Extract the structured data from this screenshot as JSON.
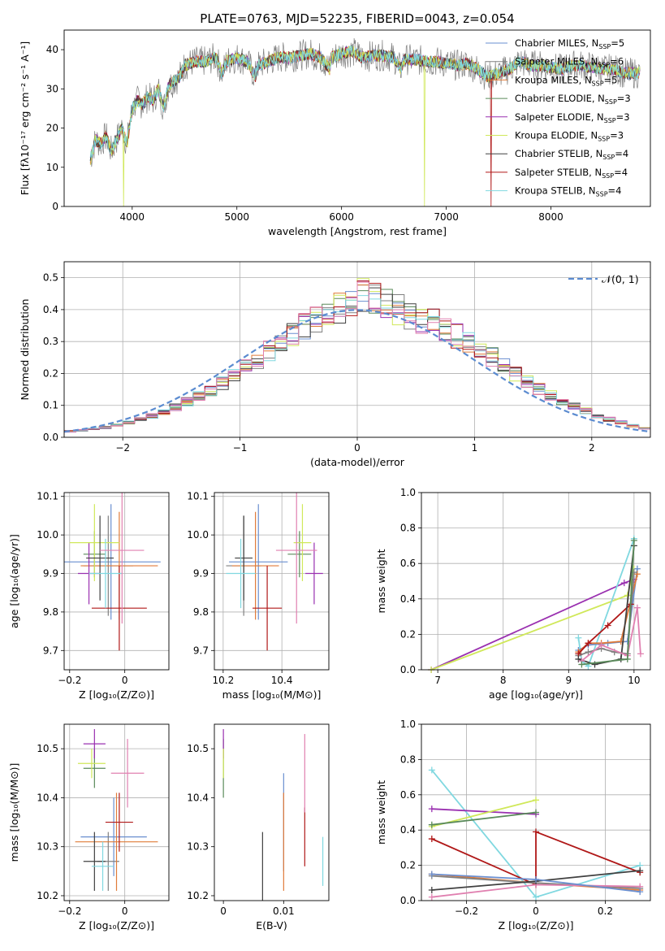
{
  "colors": {
    "chabrier_miles": "#6a8fd0",
    "salpeter_miles": "#808080",
    "kroupa_miles": "#e07b39",
    "chabrier_elodie": "#5a8a5a",
    "salpeter_elodie": "#9a30b0",
    "kroupa_elodie": "#d0e85a",
    "chabrier_stelib": "#404040",
    "salpeter_stelib": "#b01818",
    "kroupa_stelib": "#80d8e0",
    "pink": "#e080b0",
    "normal": "#5b8bd0",
    "grid": "#b0b0b0"
  },
  "chart_data": [
    {
      "id": "spectrum",
      "type": "line",
      "title": "PLATE=0763, MJD=52235, FIBERID=0043, z=0.054",
      "xlabel": "wavelength [Angstrom, rest frame]",
      "ylabel": "Flux [fλ10⁻¹⁷ erg cm⁻² s⁻¹ A⁻¹]",
      "xlim": [
        3350,
        8950
      ],
      "ylim": [
        0,
        45
      ],
      "xticks": [
        4000,
        5000,
        6000,
        7000,
        8000
      ],
      "yticks": [
        0,
        10,
        20,
        30,
        40
      ],
      "x": [
        3600,
        3650,
        3700,
        3750,
        3800,
        3850,
        3900,
        3950,
        4000,
        4050,
        4100,
        4150,
        4200,
        4250,
        4300,
        4350,
        4400,
        4450,
        4500,
        4600,
        4700,
        4800,
        4860,
        4900,
        5000,
        5100,
        5175,
        5200,
        5300,
        5400,
        5500,
        5600,
        5700,
        5800,
        5890,
        5900,
        6000,
        6100,
        6200,
        6300,
        6400,
        6500,
        6563,
        6600,
        6700,
        6800,
        6900,
        7000,
        7100,
        7200,
        7300,
        7400,
        7500,
        7600,
        7700,
        7800,
        7900,
        8000,
        8100,
        8200,
        8300,
        8400,
        8500,
        8600,
        8700,
        8850
      ],
      "y": [
        12,
        17,
        16,
        18,
        14,
        17,
        20,
        16,
        25,
        27,
        26,
        28,
        27,
        30,
        25,
        31,
        32,
        33,
        36,
        37,
        37,
        38,
        34,
        37,
        38,
        37,
        33,
        36,
        37,
        38,
        38,
        38.5,
        39,
        38,
        35,
        38,
        39,
        39.5,
        38,
        38.5,
        38.5,
        38,
        35,
        37.5,
        37.5,
        37,
        37,
        36.5,
        36,
        36.5,
        35,
        33,
        34,
        35,
        37,
        36,
        36,
        35.5,
        35,
        36,
        36,
        35.5,
        35,
        35,
        34,
        34
      ],
      "legend": [
        "Chabrier MILES, N_SSP=5",
        "Salpeter MILES, N_SSP=6",
        "Kroupa MILES, N_SSP=5",
        "Chabrier ELODIE, N_SSP=3",
        "Salpeter ELODIE, N_SSP=3",
        "Kroupa ELODIE, N_SSP=3",
        "Chabrier STELIB, N_SSP=4",
        "Salpeter STELIB, N_SSP=4",
        "Kroupa STELIB, N_SSP=4"
      ],
      "legend_text": [
        "Chabrier MILES, N",
        "Salpeter MILES, N",
        "Kroupa MILES, N",
        "Chabrier ELODIE, N",
        "Salpeter ELODIE, N",
        "Kroupa ELODIE, N",
        "Chabrier STELIB, N",
        "Salpeter STELIB, N",
        "Kroupa STELIB, N"
      ],
      "legend_sub": "SSP",
      "legend_n": [
        "=5",
        "=6",
        "=5",
        "=3",
        "=3",
        "=3",
        "=4",
        "=4",
        "=4"
      ],
      "legend_placement": "top-right",
      "dropouts": [
        3920,
        6790,
        7430
      ],
      "grid": false
    },
    {
      "id": "residuals",
      "type": "histogram",
      "xlabel": "(data-model)/error",
      "ylabel": "Normed distribution",
      "xlim": [
        -2.5,
        2.5
      ],
      "ylim": [
        0,
        0.55
      ],
      "xticks": [
        -2,
        -1,
        0,
        1,
        2
      ],
      "yticks": [
        0.0,
        0.1,
        0.2,
        0.3,
        0.4,
        0.5
      ],
      "bin_width": 0.1,
      "bin_start": -2.5,
      "values": [
        0.018,
        0.021,
        0.025,
        0.03,
        0.037,
        0.045,
        0.055,
        0.066,
        0.078,
        0.092,
        0.108,
        0.125,
        0.144,
        0.165,
        0.188,
        0.212,
        0.238,
        0.265,
        0.29,
        0.315,
        0.34,
        0.36,
        0.38,
        0.395,
        0.41,
        0.435,
        0.425,
        0.405,
        0.39,
        0.375,
        0.36,
        0.35,
        0.33,
        0.31,
        0.29,
        0.27,
        0.245,
        0.22,
        0.195,
        0.17,
        0.148,
        0.128,
        0.11,
        0.094,
        0.08,
        0.066,
        0.055,
        0.045,
        0.036,
        0.028
      ],
      "legend": "𝒩(0, 1)",
      "grid": true
    },
    {
      "id": "age-vs-Z",
      "type": "errorbar",
      "xlabel": "Z [log₁₀(Z/Z⊙)]",
      "ylabel": "age  [log₁₀(age/yr)]",
      "xlim": [
        -0.22,
        0.16
      ],
      "ylim": [
        9.65,
        10.11
      ],
      "xticks": [
        -0.2,
        0.0
      ],
      "yticks": [
        9.7,
        9.8,
        9.9,
        10.0,
        10.1
      ],
      "points": [
        {
          "x": -0.05,
          "y": 9.93,
          "xerr": 0.18,
          "yerr": 0.15,
          "c": "chabrier_miles"
        },
        {
          "x": -0.06,
          "y": 9.92,
          "xerr": 0.09,
          "yerr": 0.13,
          "c": "salpeter_miles"
        },
        {
          "x": -0.02,
          "y": 9.92,
          "xerr": 0.14,
          "yerr": 0.14,
          "c": "kroupa_miles"
        },
        {
          "x": -0.11,
          "y": 9.95,
          "xerr": 0.04,
          "yerr": 0.06,
          "c": "chabrier_elodie"
        },
        {
          "x": -0.13,
          "y": 9.9,
          "xerr": 0.04,
          "yerr": 0.08,
          "c": "salpeter_elodie"
        },
        {
          "x": -0.11,
          "y": 9.98,
          "xerr": 0.09,
          "yerr": 0.1,
          "c": "kroupa_elodie"
        },
        {
          "x": -0.09,
          "y": 9.94,
          "xerr": 0.05,
          "yerr": 0.11,
          "c": "chabrier_stelib"
        },
        {
          "x": -0.02,
          "y": 9.81,
          "xerr": 0.1,
          "yerr": 0.11,
          "c": "salpeter_stelib"
        },
        {
          "x": -0.07,
          "y": 9.9,
          "xerr": 0.06,
          "yerr": 0.09,
          "c": "kroupa_stelib"
        },
        {
          "x": -0.01,
          "y": 9.96,
          "xerr": 0.08,
          "yerr": 0.19,
          "c": "pink"
        }
      ],
      "grid": true
    },
    {
      "id": "age-vs-mass",
      "type": "errorbar",
      "xlabel": "mass [log₁₀(M/M⊙)]",
      "ylabel": "",
      "xlim": [
        10.17,
        10.56
      ],
      "ylim": [
        9.65,
        10.11
      ],
      "xticks": [
        10.2,
        10.4
      ],
      "yticks": [
        9.7,
        9.8,
        9.9,
        10.0,
        10.1
      ],
      "points": [
        {
          "x": 10.32,
          "y": 9.93,
          "xerr": 0.1,
          "yerr": 0.15,
          "c": "chabrier_miles"
        },
        {
          "x": 10.27,
          "y": 9.92,
          "xerr": 0.06,
          "yerr": 0.13,
          "c": "salpeter_miles"
        },
        {
          "x": 10.31,
          "y": 9.92,
          "xerr": 0.08,
          "yerr": 0.14,
          "c": "kroupa_miles"
        },
        {
          "x": 10.46,
          "y": 9.95,
          "xerr": 0.04,
          "yerr": 0.06,
          "c": "chabrier_elodie"
        },
        {
          "x": 10.51,
          "y": 9.9,
          "xerr": 0.03,
          "yerr": 0.08,
          "c": "salpeter_elodie"
        },
        {
          "x": 10.47,
          "y": 9.98,
          "xerr": 0.03,
          "yerr": 0.1,
          "c": "kroupa_elodie"
        },
        {
          "x": 10.27,
          "y": 9.94,
          "xerr": 0.03,
          "yerr": 0.11,
          "c": "chabrier_stelib"
        },
        {
          "x": 10.35,
          "y": 9.81,
          "xerr": 0.05,
          "yerr": 0.11,
          "c": "salpeter_stelib"
        },
        {
          "x": 10.26,
          "y": 9.9,
          "xerr": 0.05,
          "yerr": 0.09,
          "c": "kroupa_stelib"
        },
        {
          "x": 10.45,
          "y": 9.96,
          "xerr": 0.07,
          "yerr": 0.19,
          "c": "pink"
        }
      ],
      "grid": true
    },
    {
      "id": "mass-weight-vs-age",
      "type": "line",
      "xlabel": "age  [log₁₀(age/yr)]",
      "ylabel": "mass weight",
      "xlim": [
        6.75,
        10.25
      ],
      "ylim": [
        0,
        1
      ],
      "xticks": [
        7,
        8,
        9,
        10
      ],
      "yticks": [
        0.0,
        0.2,
        0.4,
        0.6,
        0.8,
        1.0
      ],
      "series": [
        {
          "c": "salpeter_elodie",
          "x": [
            6.9,
            9.85,
            10.0
          ],
          "y": [
            0.0,
            0.49,
            0.51
          ]
        },
        {
          "c": "kroupa_elodie",
          "x": [
            6.9,
            9.9,
            10.0
          ],
          "y": [
            0.0,
            0.42,
            0.57
          ]
        },
        {
          "c": "kroupa_stelib",
          "x": [
            9.15,
            9.2,
            9.3,
            10.0
          ],
          "y": [
            0.18,
            0.05,
            0.02,
            0.74
          ]
        },
        {
          "c": "chabrier_miles",
          "x": [
            9.15,
            9.3,
            9.6,
            9.9,
            10.05
          ],
          "y": [
            0.11,
            0.14,
            0.15,
            0.16,
            0.57
          ]
        },
        {
          "c": "kroupa_miles",
          "x": [
            9.15,
            9.3,
            9.5,
            9.8,
            10.05
          ],
          "y": [
            0.1,
            0.15,
            0.15,
            0.16,
            0.54
          ]
        },
        {
          "c": "salpeter_miles",
          "x": [
            9.15,
            9.3,
            9.5,
            9.7,
            9.9,
            10.0
          ],
          "y": [
            0.08,
            0.1,
            0.12,
            0.1,
            0.09,
            0.55
          ]
        },
        {
          "c": "salpeter_stelib",
          "x": [
            9.15,
            9.3,
            9.6,
            9.95
          ],
          "y": [
            0.09,
            0.15,
            0.25,
            0.37
          ]
        },
        {
          "c": "chabrier_stelib",
          "x": [
            9.15,
            9.4,
            9.8,
            10.0
          ],
          "y": [
            0.06,
            0.03,
            0.06,
            0.7
          ]
        },
        {
          "c": "pink",
          "x": [
            9.2,
            9.5,
            9.9,
            10.05,
            10.1
          ],
          "y": [
            0.05,
            0.14,
            0.08,
            0.35,
            0.09
          ]
        },
        {
          "c": "chabrier_elodie",
          "x": [
            9.2,
            9.9,
            10.0
          ],
          "y": [
            0.03,
            0.06,
            0.73
          ]
        }
      ],
      "grid": true
    },
    {
      "id": "mass-vs-Z",
      "type": "errorbar",
      "xlabel": "Z [log₁₀(Z/Z⊙)]",
      "ylabel": "mass [log₁₀(M/M⊙)]",
      "xlim": [
        -0.22,
        0.16
      ],
      "ylim": [
        10.19,
        10.55
      ],
      "xticks": [
        -0.2,
        0.0
      ],
      "yticks": [
        10.2,
        10.3,
        10.4,
        10.5
      ],
      "points": [
        {
          "x": -0.04,
          "y": 10.32,
          "xerr": 0.12,
          "yerr": 0.08,
          "c": "chabrier_miles"
        },
        {
          "x": -0.06,
          "y": 10.27,
          "xerr": 0.04,
          "yerr": 0.06,
          "c": "salpeter_miles"
        },
        {
          "x": -0.03,
          "y": 10.31,
          "xerr": 0.15,
          "yerr": 0.1,
          "c": "kroupa_miles"
        },
        {
          "x": -0.11,
          "y": 10.46,
          "xerr": 0.04,
          "yerr": 0.04,
          "c": "chabrier_elodie"
        },
        {
          "x": -0.11,
          "y": 10.51,
          "xerr": 0.04,
          "yerr": 0.03,
          "c": "salpeter_elodie"
        },
        {
          "x": -0.12,
          "y": 10.47,
          "xerr": 0.05,
          "yerr": 0.03,
          "c": "kroupa_elodie"
        },
        {
          "x": -0.11,
          "y": 10.27,
          "xerr": 0.04,
          "yerr": 0.06,
          "c": "chabrier_stelib"
        },
        {
          "x": -0.02,
          "y": 10.35,
          "xerr": 0.05,
          "yerr": 0.06,
          "c": "salpeter_stelib"
        },
        {
          "x": -0.08,
          "y": 10.26,
          "xerr": 0.04,
          "yerr": 0.05,
          "c": "kroupa_stelib"
        },
        {
          "x": 0.01,
          "y": 10.45,
          "xerr": 0.06,
          "yerr": 0.07,
          "c": "pink"
        }
      ],
      "grid": true
    },
    {
      "id": "mass-vs-ebv",
      "type": "errorbar",
      "xlabel": "E(B-V)",
      "ylabel": "",
      "xlim": [
        -0.0015,
        0.0175
      ],
      "ylim": [
        10.19,
        10.55
      ],
      "xticks": [
        0.0,
        0.01
      ],
      "yticks": [
        10.2,
        10.3,
        10.4,
        10.5
      ],
      "points": [
        {
          "x": 0.0,
          "y": 10.46,
          "xerr": 0,
          "yerr": 0.06,
          "c": "chabrier_elodie"
        },
        {
          "x": 0.0,
          "y": 10.51,
          "xerr": 0,
          "yerr": 0.03,
          "c": "salpeter_elodie"
        },
        {
          "x": 0.0,
          "y": 10.47,
          "xerr": 0,
          "yerr": 0.03,
          "c": "kroupa_elodie"
        },
        {
          "x": 0.0065,
          "y": 10.26,
          "xerr": 0,
          "yerr": 0.07,
          "c": "chabrier_stelib"
        },
        {
          "x": 0.01,
          "y": 10.35,
          "xerr": 0,
          "yerr": 0.1,
          "c": "chabrier_miles"
        },
        {
          "x": 0.01,
          "y": 10.31,
          "xerr": 0,
          "yerr": 0.1,
          "c": "kroupa_miles"
        },
        {
          "x": 0.0135,
          "y": 10.32,
          "xerr": 0,
          "yerr": 0.06,
          "c": "salpeter_stelib"
        },
        {
          "x": 0.0135,
          "y": 10.45,
          "xerr": 0,
          "yerr": 0.08,
          "c": "pink"
        },
        {
          "x": 0.0165,
          "y": 10.27,
          "xerr": 0,
          "yerr": 0.05,
          "c": "kroupa_stelib"
        }
      ],
      "grid": false
    },
    {
      "id": "mass-weight-vs-Z",
      "type": "line",
      "xlabel": "Z [log₁₀(Z/Z⊙)]",
      "ylabel": "mass weight",
      "xlim": [
        -0.33,
        0.33
      ],
      "ylim": [
        0,
        1
      ],
      "xticks": [
        -0.2,
        0.0,
        0.2
      ],
      "yticks": [
        0.0,
        0.2,
        0.4,
        0.6,
        0.8,
        1.0
      ],
      "series": [
        {
          "c": "kroupa_stelib",
          "x": [
            -0.3,
            0.0,
            0.3
          ],
          "y": [
            0.74,
            0.02,
            0.2
          ]
        },
        {
          "c": "salpeter_elodie",
          "x": [
            -0.3,
            0.0
          ],
          "y": [
            0.52,
            0.49
          ]
        },
        {
          "c": "kroupa_elodie",
          "x": [
            -0.3,
            0.0
          ],
          "y": [
            0.42,
            0.57
          ]
        },
        {
          "c": "chabrier_elodie",
          "x": [
            -0.3,
            0.0
          ],
          "y": [
            0.43,
            0.5
          ]
        },
        {
          "c": "salpeter_stelib",
          "x": [
            -0.3,
            0.0,
            0.0,
            0.3
          ],
          "y": [
            0.35,
            0.09,
            0.39,
            0.16
          ]
        },
        {
          "c": "kroupa_miles",
          "x": [
            -0.3,
            0.0,
            0.3
          ],
          "y": [
            0.15,
            0.1,
            0.06
          ]
        },
        {
          "c": "salpeter_miles",
          "x": [
            -0.3,
            0.0,
            0.3
          ],
          "y": [
            0.14,
            0.1,
            0.07
          ]
        },
        {
          "c": "pink",
          "x": [
            -0.3,
            0.0,
            0.3
          ],
          "y": [
            0.02,
            0.09,
            0.08
          ]
        },
        {
          "c": "chabrier_stelib",
          "x": [
            -0.3,
            0.0,
            0.3
          ],
          "y": [
            0.06,
            0.11,
            0.17
          ]
        },
        {
          "c": "chabrier_miles",
          "x": [
            -0.3,
            0.0,
            0.3
          ],
          "y": [
            0.15,
            0.12,
            0.05
          ]
        }
      ],
      "grid": true
    }
  ]
}
